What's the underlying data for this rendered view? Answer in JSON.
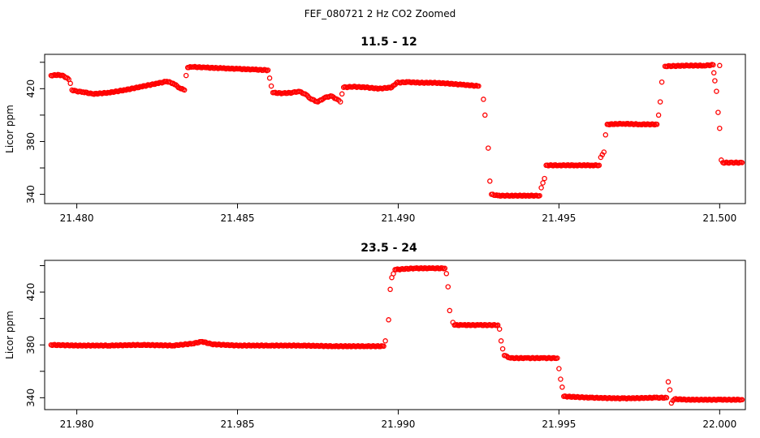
{
  "figure_title": "FEF_080721  2 Hz CO2 Zoomed",
  "chart_data": [
    {
      "type": "scatter",
      "title": "11.5 - 12",
      "xlabel": "",
      "ylabel": "Licor ppm",
      "xlim": [
        21.479,
        21.5008
      ],
      "ylim": [
        333,
        446
      ],
      "xticks": [
        21.48,
        21.485,
        21.49,
        21.495,
        21.5
      ],
      "xtick_labels": [
        "21.480",
        "21.485",
        "21.490",
        "21.495",
        "21.500"
      ],
      "yticks": [
        340,
        360,
        380,
        400,
        420,
        440
      ],
      "ytick_labels": [
        "340",
        "",
        "380",
        "",
        "420",
        ""
      ],
      "grid": false,
      "marker_color": "#ff0000",
      "series": [
        {
          "points": [
            [
              21.4792,
              430
            ],
            [
              21.47945,
              430.5
            ],
            [
              21.4796,
              429.5
            ],
            [
              21.47975,
              427
            ],
            [
              21.4798,
              424
            ],
            [
              21.47985,
              419
            ],
            [
              21.48,
              418
            ],
            [
              21.4802,
              417.5
            ],
            [
              21.4805,
              416
            ],
            [
              21.481,
              417
            ],
            [
              21.4815,
              419
            ],
            [
              21.482,
              421.5
            ],
            [
              21.4825,
              424
            ],
            [
              21.4828,
              425.5
            ],
            [
              21.483,
              424
            ],
            [
              21.4832,
              420.5
            ],
            [
              21.48335,
              419
            ],
            [
              21.4834,
              430
            ],
            [
              21.48345,
              436
            ],
            [
              21.4836,
              436.5
            ],
            [
              21.484,
              436
            ],
            [
              21.4845,
              435.5
            ],
            [
              21.485,
              435
            ],
            [
              21.4855,
              434.5
            ],
            [
              21.48595,
              434
            ],
            [
              21.486,
              428
            ],
            [
              21.48605,
              422
            ],
            [
              21.4861,
              417
            ],
            [
              21.4864,
              416.5
            ],
            [
              21.4867,
              417
            ],
            [
              21.4869,
              418
            ],
            [
              21.4871,
              416
            ],
            [
              21.4873,
              412
            ],
            [
              21.4875,
              410
            ],
            [
              21.4877,
              413
            ],
            [
              21.4879,
              414.5
            ],
            [
              21.4881,
              412
            ],
            [
              21.4882,
              410
            ],
            [
              21.48825,
              416
            ],
            [
              21.4883,
              421
            ],
            [
              21.4886,
              421.5
            ],
            [
              21.489,
              421
            ],
            [
              21.4894,
              420
            ],
            [
              21.4898,
              421
            ],
            [
              21.48995,
              424.5
            ],
            [
              21.4903,
              425
            ],
            [
              21.4907,
              424.5
            ],
            [
              21.4911,
              424.5
            ],
            [
              21.4915,
              424
            ],
            [
              21.492,
              423
            ],
            [
              21.4925,
              422
            ],
            [
              21.49265,
              412
            ],
            [
              21.4927,
              400
            ],
            [
              21.4928,
              375
            ],
            [
              21.49285,
              350
            ],
            [
              21.4929,
              340
            ],
            [
              21.4931,
              339
            ],
            [
              21.4935,
              339
            ],
            [
              21.494,
              339
            ],
            [
              21.4944,
              339
            ],
            [
              21.49445,
              345
            ],
            [
              21.49455,
              352
            ],
            [
              21.4946,
              362
            ],
            [
              21.495,
              362
            ],
            [
              21.4955,
              362
            ],
            [
              21.496,
              362
            ],
            [
              21.49625,
              362
            ],
            [
              21.4963,
              368
            ],
            [
              21.4964,
              372
            ],
            [
              21.49645,
              385
            ],
            [
              21.4965,
              393
            ],
            [
              21.497,
              393.5
            ],
            [
              21.4975,
              393
            ],
            [
              21.49805,
              393
            ],
            [
              21.4981,
              400
            ],
            [
              21.49815,
              410
            ],
            [
              21.4982,
              425
            ],
            [
              21.4983,
              437
            ],
            [
              21.499,
              437.5
            ],
            [
              21.5,
              437.5
            ],
            [
              21.4995,
              437.5
            ],
            [
              21.4998,
              438
            ],
            [
              21.49982,
              432
            ],
            [
              21.49985,
              426
            ],
            [
              21.4999,
              418
            ],
            [
              21.49995,
              402
            ],
            [
              21.5,
              390
            ],
            [
              21.50005,
              366
            ],
            [
              21.5001,
              364
            ],
            [
              21.5004,
              364
            ],
            [
              21.5007,
              364
            ]
          ]
        }
      ]
    },
    {
      "type": "scatter",
      "title": "23.5 - 24",
      "xlabel": "",
      "ylabel": "Licor ppm",
      "xlim": [
        21.979,
        22.0008
      ],
      "ylim": [
        331,
        444
      ],
      "xticks": [
        21.98,
        21.985,
        21.99,
        21.995,
        22.0
      ],
      "xtick_labels": [
        "21.980",
        "21.985",
        "21.990",
        "21.995",
        "22.000"
      ],
      "yticks": [
        340,
        360,
        380,
        400,
        420,
        440
      ],
      "ytick_labels": [
        "340",
        "",
        "380",
        "",
        "420",
        ""
      ],
      "grid": false,
      "marker_color": "#ff0000",
      "series": [
        {
          "points": [
            [
              21.9792,
              380
            ],
            [
              21.98,
              379.5
            ],
            [
              21.981,
              379.5
            ],
            [
              21.982,
              380
            ],
            [
              21.983,
              379.5
            ],
            [
              21.9836,
              381
            ],
            [
              21.9839,
              382.5
            ],
            [
              21.9842,
              380.5
            ],
            [
              21.985,
              379.5
            ],
            [
              21.986,
              379.5
            ],
            [
              21.987,
              379.5
            ],
            [
              21.988,
              379
            ],
            [
              21.989,
              379
            ],
            [
              21.98955,
              379
            ],
            [
              21.9896,
              383
            ],
            [
              21.9897,
              399
            ],
            [
              21.98975,
              422
            ],
            [
              21.9898,
              431
            ],
            [
              21.9899,
              437
            ],
            [
              21.9905,
              438
            ],
            [
              21.991,
              438
            ],
            [
              21.99145,
              438
            ],
            [
              21.9915,
              434
            ],
            [
              21.99155,
              424
            ],
            [
              21.9916,
              406
            ],
            [
              21.9917,
              397
            ],
            [
              21.99175,
              395
            ],
            [
              21.992,
              395
            ],
            [
              21.9925,
              395
            ],
            [
              21.9931,
              395
            ],
            [
              21.99315,
              392
            ],
            [
              21.9932,
              383
            ],
            [
              21.99325,
              377
            ],
            [
              21.9933,
              372
            ],
            [
              21.9935,
              370
            ],
            [
              21.994,
              370
            ],
            [
              21.9945,
              370
            ],
            [
              21.99495,
              370
            ],
            [
              21.995,
              362
            ],
            [
              21.99505,
              354
            ],
            [
              21.9951,
              348
            ],
            [
              21.99515,
              341
            ],
            [
              21.996,
              340
            ],
            [
              21.997,
              339.5
            ],
            [
              21.998,
              340
            ],
            [
              21.99835,
              340
            ],
            [
              21.9984,
              352
            ],
            [
              21.99845,
              346
            ],
            [
              21.9985,
              336
            ],
            [
              21.9986,
              339
            ],
            [
              21.999,
              338.5
            ],
            [
              22.0,
              338.5
            ],
            [
              22.0004,
              338.5
            ],
            [
              22.0007,
              338.5
            ]
          ]
        }
      ]
    }
  ]
}
